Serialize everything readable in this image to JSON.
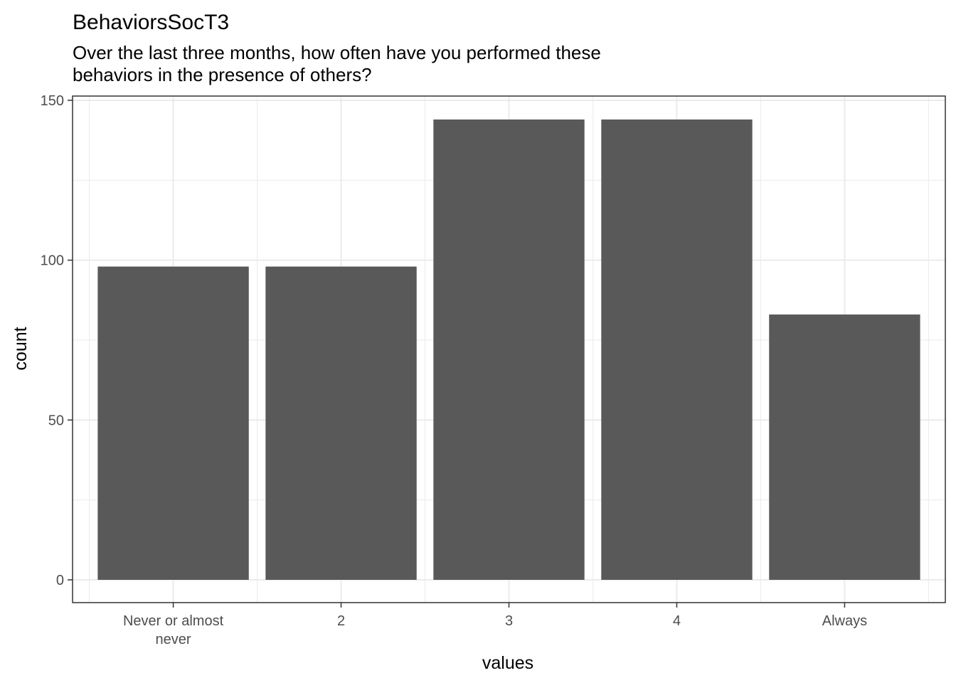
{
  "chart_data": {
    "type": "bar",
    "title": "BehaviorsSocT3",
    "subtitle": [
      "Over the last three months, how often have you performed these",
      "behaviors in the presence of others?"
    ],
    "xlabel": "values",
    "ylabel": "count",
    "categories": [
      [
        "Never or almost",
        "never"
      ],
      [
        "2"
      ],
      [
        "3"
      ],
      [
        "4"
      ],
      [
        "Always"
      ]
    ],
    "values": [
      98,
      98,
      144,
      144,
      83
    ],
    "ylim": [
      0,
      151.2
    ],
    "yticks": [
      0,
      50,
      100,
      150
    ],
    "ytick_labels": [
      "0",
      "50",
      "100",
      "150"
    ],
    "grid": true,
    "colors": {
      "bar": "#595959",
      "grid": "#ebebeb",
      "panel_border": "#333333",
      "background": "#ffffff",
      "tick_text": "#4d4d4d"
    }
  }
}
